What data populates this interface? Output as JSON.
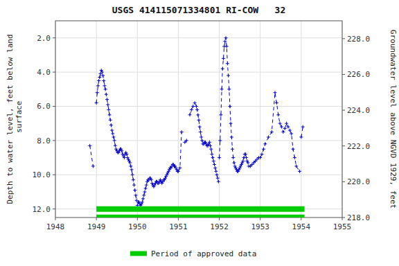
{
  "chart_data": {
    "type": "line",
    "title": "USGS 414115071334801 RI-COW   32",
    "ylabel": "Depth to water level, feet below land\n surface",
    "y2label": "Groundwater level above NGVD 1929, feet",
    "xlim": [
      1948,
      1955
    ],
    "ylim": [
      12.5,
      1.0
    ],
    "y2lim": [
      218.0,
      229.0
    ],
    "xticks": [
      1948,
      1949,
      1950,
      1951,
      1952,
      1953,
      1954,
      1955
    ],
    "yticks": [
      {
        "value": 2.0,
        "label": "2.0"
      },
      {
        "value": 4.0,
        "label": "4.0"
      },
      {
        "value": 6.0,
        "label": "6.0"
      },
      {
        "value": 8.0,
        "label": "8.0"
      },
      {
        "value": 10.0,
        "label": "10.0"
      },
      {
        "value": 12.0,
        "label": "12.0"
      }
    ],
    "y2ticks": [
      {
        "value": 218.0,
        "label": "218.0"
      },
      {
        "value": 220.0,
        "label": "220.0"
      },
      {
        "value": 222.0,
        "label": "222.0"
      },
      {
        "value": 224.0,
        "label": "224.0"
      },
      {
        "value": 226.0,
        "label": "226.0"
      },
      {
        "value": 228.0,
        "label": "228.0"
      }
    ],
    "grid": true,
    "legend": "bottom",
    "series": [
      {
        "color": "#0000cc",
        "line_style": "dashed",
        "marker": "plus",
        "x": [
          1948.84,
          1948.92,
          null,
          1949.0,
          1949.02,
          1949.04,
          1949.06,
          1949.08,
          1949.1,
          1949.12,
          1949.14,
          1949.16,
          1949.18,
          1949.2,
          1949.22,
          1949.24,
          1949.26,
          1949.28,
          1949.3,
          1949.32,
          1949.34,
          1949.36,
          1949.38,
          1949.4,
          1949.42,
          1949.44,
          1949.46,
          1949.48,
          1949.5,
          1949.52,
          1949.54,
          1949.56,
          1949.58,
          1949.6,
          1949.62,
          1949.64,
          1949.66,
          1949.68,
          1949.7,
          1949.72,
          1949.74,
          1949.76,
          1949.78,
          1949.8,
          1949.82,
          1949.84,
          1949.86,
          1949.88,
          1949.9,
          1949.92,
          1949.94,
          1949.96,
          1949.98,
          null,
          1950.0,
          1950.02,
          1950.04,
          1950.06,
          1950.08,
          1950.1,
          1950.12,
          1950.14,
          1950.16,
          1950.18,
          1950.2,
          1950.22,
          1950.24,
          1950.26,
          1950.28,
          1950.3,
          1950.32,
          1950.34,
          1950.36,
          1950.38,
          1950.4,
          1950.42,
          1950.44,
          1950.46,
          1950.48,
          1950.5,
          1950.52,
          1950.54,
          1950.56,
          1950.58,
          1950.6,
          1950.62,
          1950.64,
          1950.66,
          1950.68,
          1950.7,
          1950.72,
          1950.74,
          1950.76,
          1950.78,
          1950.8,
          1950.82,
          1950.84,
          1950.86,
          1950.88,
          1950.9,
          1950.92,
          1950.94,
          1950.96,
          1950.98,
          null,
          1951.0,
          1951.04,
          1951.08,
          null,
          1951.16,
          1951.2,
          null,
          1951.28,
          1951.32,
          1951.36,
          1951.4,
          1951.44,
          1951.46,
          1951.48,
          1951.5,
          1951.52,
          1951.54,
          1951.56,
          1951.58,
          1951.6,
          1951.62,
          1951.64,
          1951.66,
          1951.68,
          1951.7,
          1951.72,
          1951.74,
          1951.76,
          1951.78,
          1951.8,
          1951.82,
          1951.84,
          1951.86,
          1951.88,
          1951.9,
          1951.92,
          1951.94,
          1951.96,
          1951.98,
          null,
          1952.0,
          1952.02,
          1952.04,
          1952.06,
          1952.08,
          1952.1,
          1952.12,
          1952.14,
          1952.16,
          1952.18,
          1952.2,
          1952.22,
          1952.24,
          1952.26,
          1952.28,
          1952.3,
          1952.32,
          1952.34,
          1952.36,
          1952.38,
          1952.4,
          1952.42,
          1952.44,
          1952.46,
          1952.48,
          1952.5,
          1952.52,
          1952.54,
          1952.56,
          1952.58,
          1952.6,
          1952.62,
          1952.64,
          1952.66,
          1952.68,
          1952.7,
          1952.72,
          1952.76,
          1952.8,
          1952.84,
          1952.88,
          1952.92,
          1952.96,
          null,
          1953.0,
          1953.04,
          1953.08,
          1953.12,
          1953.2,
          1953.28,
          1953.36,
          1953.4,
          1953.44,
          1953.48,
          1953.52,
          1953.56,
          1953.6,
          1953.64,
          1953.68,
          1953.72,
          1953.76,
          1953.8,
          1953.84,
          1953.88,
          1953.96,
          null,
          1954.0,
          1954.04
        ],
        "values": [
          8.3,
          9.5,
          null,
          5.8,
          5.2,
          4.8,
          4.5,
          4.3,
          4.1,
          3.9,
          4.0,
          4.2,
          4.5,
          4.8,
          5.0,
          5.3,
          5.6,
          5.9,
          6.2,
          6.5,
          6.8,
          7.1,
          7.4,
          7.6,
          7.8,
          8.0,
          8.3,
          8.5,
          8.6,
          8.7,
          8.7,
          8.6,
          8.5,
          8.5,
          8.6,
          8.8,
          8.9,
          9.0,
          8.8,
          8.7,
          8.8,
          9.0,
          9.1,
          9.2,
          9.3,
          9.5,
          9.7,
          10.0,
          10.3,
          10.6,
          10.9,
          11.2,
          11.5,
          null,
          11.8,
          11.6,
          11.6,
          11.7,
          11.8,
          11.7,
          11.6,
          11.4,
          11.2,
          11.0,
          10.8,
          10.6,
          10.4,
          10.3,
          10.3,
          10.2,
          10.2,
          10.3,
          10.5,
          10.6,
          10.7,
          10.6,
          10.5,
          10.4,
          10.4,
          10.5,
          10.5,
          10.4,
          10.3,
          10.4,
          10.5,
          10.4,
          10.3,
          10.3,
          10.2,
          10.1,
          10.0,
          9.9,
          9.8,
          9.7,
          9.6,
          9.6,
          9.5,
          9.4,
          9.4,
          9.5,
          9.5,
          9.6,
          9.7,
          9.8,
          null,
          9.8,
          9.6,
          7.5,
          null,
          8.1,
          8.0,
          null,
          6.5,
          6.2,
          6.0,
          5.8,
          6.0,
          6.2,
          6.5,
          6.8,
          7.2,
          7.5,
          7.8,
          8.0,
          8.2,
          8.2,
          8.1,
          8.1,
          8.2,
          8.3,
          8.3,
          8.2,
          8.1,
          8.3,
          8.5,
          8.8,
          9.0,
          9.2,
          9.4,
          9.6,
          9.8,
          10.0,
          10.2,
          10.4,
          null,
          9.0,
          8.0,
          6.5,
          5.0,
          3.8,
          3.2,
          2.5,
          2.2,
          2.0,
          2.5,
          3.5,
          4.2,
          5.0,
          6.0,
          7.0,
          7.8,
          8.5,
          9.0,
          9.3,
          9.5,
          9.6,
          9.7,
          9.8,
          9.8,
          9.7,
          9.6,
          9.5,
          9.4,
          9.3,
          9.2,
          9.0,
          8.8,
          8.8,
          9.0,
          9.2,
          9.3,
          9.5,
          9.5,
          9.4,
          9.3,
          9.2,
          9.1,
          9.0,
          null,
          9.0,
          8.8,
          8.5,
          8.2,
          7.8,
          7.5,
          5.2,
          5.8,
          6.5,
          7.0,
          7.2,
          7.5,
          7.3,
          7.0,
          7.2,
          7.4,
          7.6,
          8.5,
          9.0,
          9.5,
          9.8,
          null,
          7.8,
          7.2
        ]
      },
      {
        "name": "Period of approved data",
        "color": "#00cc00",
        "line_style": "solid",
        "x": [
          1949.0,
          1954.08
        ],
        "values": [
          12.0,
          12.0
        ]
      },
      {
        "color": "#00cc00",
        "line_style": "solid",
        "x": [
          1949.0,
          1954.08
        ],
        "values": [
          12.49,
          12.49
        ]
      }
    ]
  }
}
